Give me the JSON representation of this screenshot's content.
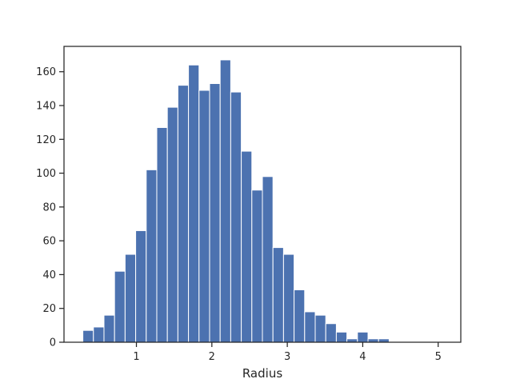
{
  "chart_data": {
    "type": "bar",
    "title": "",
    "xlabel": "Radius",
    "ylabel": "",
    "xlim": [
      0.04,
      5.3
    ],
    "ylim": [
      0,
      175
    ],
    "bin_width": 0.14,
    "xticks": [
      1,
      2,
      3,
      4,
      5
    ],
    "yticks": [
      0,
      20,
      40,
      60,
      80,
      100,
      120,
      140,
      160
    ],
    "grid": false,
    "legend": "none",
    "bar_color": "#4c72b0",
    "bins": [
      {
        "x_start": 0.29,
        "value": 7
      },
      {
        "x_start": 0.43,
        "value": 9
      },
      {
        "x_start": 0.57,
        "value": 16
      },
      {
        "x_start": 0.71,
        "value": 42
      },
      {
        "x_start": 0.85,
        "value": 52
      },
      {
        "x_start": 0.99,
        "value": 66
      },
      {
        "x_start": 1.13,
        "value": 102
      },
      {
        "x_start": 1.27,
        "value": 127
      },
      {
        "x_start": 1.41,
        "value": 139
      },
      {
        "x_start": 1.55,
        "value": 152
      },
      {
        "x_start": 1.69,
        "value": 164
      },
      {
        "x_start": 1.83,
        "value": 149
      },
      {
        "x_start": 1.97,
        "value": 153
      },
      {
        "x_start": 2.11,
        "value": 167
      },
      {
        "x_start": 2.25,
        "value": 148
      },
      {
        "x_start": 2.39,
        "value": 113
      },
      {
        "x_start": 2.53,
        "value": 90
      },
      {
        "x_start": 2.67,
        "value": 98
      },
      {
        "x_start": 2.81,
        "value": 56
      },
      {
        "x_start": 2.95,
        "value": 52
      },
      {
        "x_start": 3.09,
        "value": 31
      },
      {
        "x_start": 3.23,
        "value": 18
      },
      {
        "x_start": 3.37,
        "value": 16
      },
      {
        "x_start": 3.51,
        "value": 11
      },
      {
        "x_start": 3.65,
        "value": 6
      },
      {
        "x_start": 3.79,
        "value": 2
      },
      {
        "x_start": 3.93,
        "value": 6
      },
      {
        "x_start": 4.07,
        "value": 2
      },
      {
        "x_start": 4.21,
        "value": 2
      },
      {
        "x_start": 4.35,
        "value": 0
      },
      {
        "x_start": 4.49,
        "value": 0
      },
      {
        "x_start": 4.63,
        "value": 0
      },
      {
        "x_start": 4.77,
        "value": 0
      },
      {
        "x_start": 4.91,
        "value": 0
      }
    ]
  }
}
